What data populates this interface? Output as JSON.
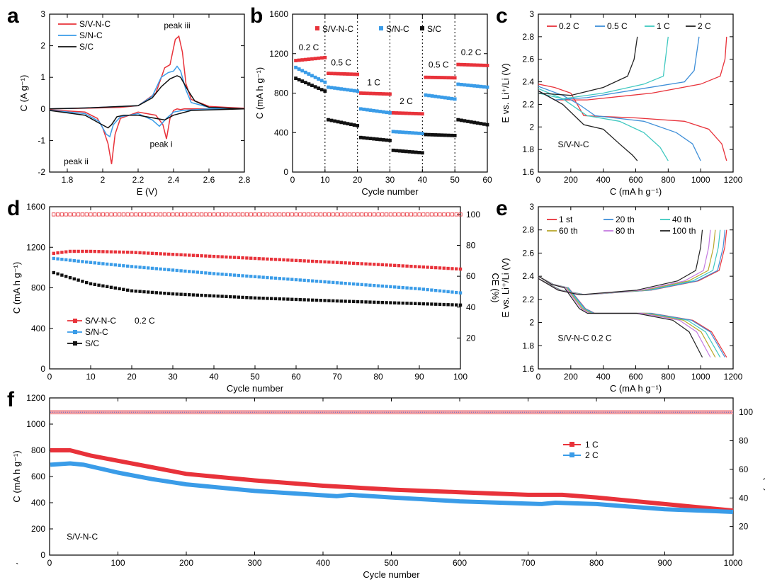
{
  "figure_note": "`",
  "colors": {
    "svnc": "#e8323a",
    "snc": "#3a9ce8",
    "sc": "#111111",
    "c02": "#e8323a",
    "c05": "#3f8fd8",
    "c1": "#3fc8c0",
    "c2": "#222222"
  },
  "chart_data": [
    {
      "id": "a",
      "type": "line",
      "panel_label": "a",
      "xlabel": "E (V)",
      "ylabel": "C (A g⁻¹)",
      "xlim": [
        1.7,
        2.8
      ],
      "ylim": [
        -2,
        3
      ],
      "xticks": [
        1.8,
        2.0,
        2.2,
        2.4,
        2.6,
        2.8
      ],
      "yticks": [
        -2,
        -1,
        0,
        1,
        2,
        3
      ],
      "legend": [
        "S/V-N-C",
        "S/N-C",
        "S/C"
      ],
      "annotations": [
        "peak iii",
        "peak ii",
        "peak i"
      ],
      "series": [
        {
          "name": "S/V-N-C",
          "color": "#e8323a",
          "x": [
            1.7,
            1.9,
            1.97,
            2.0,
            2.03,
            2.05,
            2.07,
            2.1,
            2.2,
            2.3,
            2.34,
            2.36,
            2.38,
            2.4,
            2.42,
            2.44,
            2.46,
            2.5,
            2.6,
            2.8,
            2.7,
            2.6,
            2.5,
            2.47,
            2.45,
            2.43,
            2.41,
            2.38,
            2.35,
            2.3,
            2.2,
            2.1,
            1.9,
            1.7
          ],
          "y": [
            -0.03,
            -0.1,
            -0.3,
            -0.6,
            -1.1,
            -1.75,
            -0.8,
            -0.3,
            -0.1,
            -0.2,
            -0.5,
            -0.95,
            -0.3,
            -0.05,
            0,
            -0.02,
            0,
            0,
            0,
            0.02,
            0.05,
            0.08,
            0.3,
            0.8,
            1.8,
            2.3,
            2.2,
            1.4,
            1.3,
            0.5,
            0.1,
            0.05,
            0.02,
            0
          ]
        },
        {
          "name": "S/N-C",
          "color": "#3a9ce8",
          "x": [
            1.7,
            1.9,
            1.98,
            2.02,
            2.04,
            2.06,
            2.1,
            2.2,
            2.28,
            2.32,
            2.36,
            2.4,
            2.45,
            2.6,
            2.8,
            2.6,
            2.5,
            2.47,
            2.44,
            2.42,
            2.4,
            2.37,
            2.33,
            2.28,
            2.2,
            1.9,
            1.7
          ],
          "y": [
            -0.04,
            -0.15,
            -0.4,
            -0.8,
            -0.88,
            -0.5,
            -0.25,
            -0.15,
            -0.35,
            -0.55,
            -0.3,
            -0.1,
            -0.05,
            0,
            0,
            0.05,
            0.2,
            0.6,
            1.2,
            1.35,
            1.2,
            1.15,
            1.0,
            0.4,
            0.1,
            0.03,
            0
          ]
        },
        {
          "name": "S/C",
          "color": "#111111",
          "x": [
            1.7,
            1.9,
            1.98,
            2.03,
            2.05,
            2.08,
            2.12,
            2.2,
            2.3,
            2.35,
            2.4,
            2.5,
            2.8,
            2.6,
            2.52,
            2.48,
            2.44,
            2.42,
            2.38,
            2.33,
            2.28,
            2.2,
            1.9,
            1.7
          ],
          "y": [
            -0.05,
            -0.2,
            -0.45,
            -0.6,
            -0.5,
            -0.25,
            -0.2,
            -0.2,
            -0.3,
            -0.35,
            -0.2,
            -0.05,
            0,
            0.05,
            0.25,
            0.6,
            1.0,
            1.05,
            0.95,
            0.7,
            0.35,
            0.1,
            0.03,
            0
          ]
        }
      ]
    },
    {
      "id": "b",
      "type": "scatter",
      "panel_label": "b",
      "xlabel": "Cycle number",
      "ylabel": "C (mA h g⁻¹)",
      "xlim": [
        0,
        60
      ],
      "ylim": [
        0,
        1600
      ],
      "xticks": [
        0,
        10,
        20,
        30,
        40,
        50,
        60
      ],
      "yticks": [
        0,
        400,
        800,
        1200,
        1600
      ],
      "legend": [
        "S/V-N-C",
        "S/N-C",
        "S/C"
      ],
      "rate_labels": [
        "0.2 C",
        "0.5 C",
        "1 C",
        "2 C",
        "0.5 C",
        "0.2 C"
      ],
      "separators": [
        10,
        20,
        30,
        40,
        50
      ],
      "series": [
        {
          "name": "S/V-N-C",
          "color": "#e8323a",
          "segments": [
            [
              1,
              10,
              1130,
              1160
            ],
            [
              11,
              20,
              1000,
              990
            ],
            [
              21,
              30,
              800,
              790
            ],
            [
              31,
              40,
              600,
              590
            ],
            [
              41,
              50,
              960,
              955
            ],
            [
              51,
              60,
              1090,
              1080
            ]
          ]
        },
        {
          "name": "S/N-C",
          "color": "#3a9ce8",
          "segments": [
            [
              1,
              10,
              1060,
              910
            ],
            [
              11,
              20,
              860,
              820
            ],
            [
              21,
              30,
              640,
              600
            ],
            [
              31,
              40,
              410,
              390
            ],
            [
              41,
              50,
              780,
              740
            ],
            [
              51,
              60,
              890,
              860
            ]
          ]
        },
        {
          "name": "S/C",
          "color": "#111111",
          "segments": [
            [
              1,
              10,
              950,
              820
            ],
            [
              11,
              20,
              530,
              470
            ],
            [
              21,
              30,
              350,
              320
            ],
            [
              31,
              40,
              220,
              195
            ],
            [
              41,
              50,
              380,
              370
            ],
            [
              51,
              60,
              530,
              480
            ]
          ]
        }
      ]
    },
    {
      "id": "c",
      "type": "line",
      "panel_label": "c",
      "xlabel": "C (mA h g⁻¹)",
      "ylabel": "E vs. Li⁺/Li (V)",
      "xlim": [
        0,
        1200
      ],
      "ylim": [
        1.6,
        3.0
      ],
      "xticks": [
        0,
        200,
        400,
        600,
        800,
        1000,
        1200
      ],
      "yticks": [
        1.6,
        1.8,
        2.0,
        2.2,
        2.4,
        2.6,
        2.8,
        3.0
      ],
      "legend": [
        "0.2 C",
        "0.5 C",
        "1 C",
        "2 C"
      ],
      "annotation": "S/V-N-C",
      "series": [
        {
          "name": "0.2 C",
          "color": "#e8323a",
          "discharge": [
            [
              0,
              2.38
            ],
            [
              100,
              2.35
            ],
            [
              200,
              2.3
            ],
            [
              280,
              2.1
            ],
            [
              600,
              2.08
            ],
            [
              900,
              2.05
            ],
            [
              1050,
              1.98
            ],
            [
              1130,
              1.85
            ],
            [
              1160,
              1.7
            ]
          ],
          "charge": [
            [
              0,
              2.32
            ],
            [
              100,
              2.24
            ],
            [
              300,
              2.24
            ],
            [
              700,
              2.3
            ],
            [
              1000,
              2.38
            ],
            [
              1120,
              2.45
            ],
            [
              1150,
              2.6
            ],
            [
              1160,
              2.8
            ]
          ]
        },
        {
          "name": "0.5 C",
          "color": "#3f8fd8",
          "discharge": [
            [
              0,
              2.36
            ],
            [
              150,
              2.28
            ],
            [
              250,
              2.2
            ],
            [
              350,
              2.1
            ],
            [
              650,
              2.05
            ],
            [
              850,
              1.95
            ],
            [
              950,
              1.85
            ],
            [
              1000,
              1.7
            ]
          ],
          "charge": [
            [
              0,
              2.32
            ],
            [
              100,
              2.24
            ],
            [
              300,
              2.26
            ],
            [
              600,
              2.33
            ],
            [
              900,
              2.4
            ],
            [
              960,
              2.5
            ],
            [
              990,
              2.8
            ]
          ]
        },
        {
          "name": "1 C",
          "color": "#3fc8c0",
          "discharge": [
            [
              0,
              2.34
            ],
            [
              150,
              2.25
            ],
            [
              300,
              2.1
            ],
            [
              500,
              2.05
            ],
            [
              650,
              1.95
            ],
            [
              750,
              1.82
            ],
            [
              800,
              1.7
            ]
          ],
          "charge": [
            [
              0,
              2.3
            ],
            [
              150,
              2.25
            ],
            [
              400,
              2.3
            ],
            [
              650,
              2.38
            ],
            [
              770,
              2.45
            ],
            [
              800,
              2.8
            ]
          ]
        },
        {
          "name": "2 C",
          "color": "#222222",
          "discharge": [
            [
              0,
              2.32
            ],
            [
              150,
              2.2
            ],
            [
              280,
              2.02
            ],
            [
              400,
              1.98
            ],
            [
              500,
              1.85
            ],
            [
              580,
              1.75
            ],
            [
              610,
              1.7
            ]
          ],
          "charge": [
            [
              0,
              2.3
            ],
            [
              200,
              2.28
            ],
            [
              400,
              2.35
            ],
            [
              550,
              2.45
            ],
            [
              590,
              2.6
            ],
            [
              610,
              2.8
            ]
          ]
        }
      ]
    },
    {
      "id": "d",
      "type": "scatter",
      "panel_label": "d",
      "xlabel": "Cycle number",
      "ylabel": "C (mA h g⁻¹)",
      "y2label": "CE (%)",
      "xlim": [
        0,
        100
      ],
      "ylim": [
        0,
        1600
      ],
      "y2lim": [
        0,
        105
      ],
      "xticks": [
        0,
        10,
        20,
        30,
        40,
        50,
        60,
        70,
        80,
        90,
        100
      ],
      "yticks": [
        0,
        400,
        800,
        1200,
        1600
      ],
      "y2ticks": [
        20,
        40,
        60,
        80,
        100
      ],
      "legend": [
        "S/V-N-C",
        "S/N-C",
        "S/C"
      ],
      "legend_note": "0.2 C",
      "series": [
        {
          "name": "S/V-N-C",
          "color": "#e8323a",
          "x": [
            1,
            5,
            10,
            20,
            40,
            60,
            80,
            100
          ],
          "y": [
            1140,
            1160,
            1160,
            1150,
            1110,
            1070,
            1030,
            985
          ]
        },
        {
          "name": "S/N-C",
          "color": "#3a9ce8",
          "x": [
            1,
            10,
            20,
            40,
            60,
            80,
            90,
            100
          ],
          "y": [
            1090,
            1050,
            1010,
            940,
            880,
            820,
            790,
            750
          ]
        },
        {
          "name": "S/C",
          "color": "#111111",
          "x": [
            1,
            5,
            10,
            20,
            30,
            50,
            70,
            100
          ],
          "y": [
            950,
            900,
            840,
            770,
            740,
            700,
            670,
            630
          ]
        },
        {
          "name": "CE",
          "color": "#e8323a",
          "x": [
            1,
            100
          ],
          "y": [
            100,
            100
          ]
        }
      ]
    },
    {
      "id": "e",
      "type": "line",
      "panel_label": "e",
      "xlabel": "C (mA h g⁻¹)",
      "ylabel": "E vs. Li⁺/Li (V)",
      "xlim": [
        0,
        1200
      ],
      "ylim": [
        1.6,
        3.0
      ],
      "xticks": [
        0,
        200,
        400,
        600,
        800,
        1000,
        1200
      ],
      "yticks": [
        1.6,
        1.8,
        2.0,
        2.2,
        2.4,
        2.6,
        2.8,
        3.0
      ],
      "legend": [
        "1 st",
        "20 th",
        "40 th",
        "60 th",
        "80 th",
        "100 th"
      ],
      "annotation": "S/V-N-C    0.2 C",
      "series_colors": [
        "#e8323a",
        "#3f8fd8",
        "#3fc8c0",
        "#b9a82c",
        "#c47be0",
        "#222222"
      ],
      "capacities": [
        1160,
        1150,
        1120,
        1090,
        1060,
        1010
      ]
    },
    {
      "id": "f",
      "type": "scatter",
      "panel_label": "f",
      "xlabel": "Cycle number",
      "ylabel": "C (mA h g⁻¹)",
      "y2label": "CE (%)",
      "xlim": [
        0,
        1000
      ],
      "ylim": [
        0,
        1200
      ],
      "y2lim": [
        0,
        110
      ],
      "xticks": [
        0,
        100,
        200,
        300,
        400,
        500,
        600,
        700,
        800,
        900,
        1000
      ],
      "yticks": [
        0,
        200,
        400,
        600,
        800,
        1000,
        1200
      ],
      "y2ticks": [
        20,
        40,
        60,
        80,
        100
      ],
      "legend": [
        "1 C",
        "2 C"
      ],
      "annotation": "S/V-N-C",
      "series": [
        {
          "name": "1 C",
          "color": "#e8323a",
          "x": [
            1,
            30,
            60,
            100,
            150,
            200,
            300,
            400,
            500,
            600,
            700,
            750,
            800,
            900,
            1000
          ],
          "y": [
            800,
            800,
            760,
            720,
            670,
            620,
            570,
            530,
            500,
            480,
            460,
            460,
            440,
            390,
            340
          ]
        },
        {
          "name": "2 C",
          "color": "#3a9ce8",
          "x": [
            1,
            30,
            50,
            100,
            150,
            200,
            300,
            420,
            440,
            500,
            600,
            720,
            740,
            800,
            900,
            1000
          ],
          "y": [
            690,
            700,
            690,
            630,
            580,
            540,
            490,
            450,
            460,
            440,
            410,
            390,
            400,
            390,
            350,
            330
          ]
        },
        {
          "name": "CE",
          "color": "#e8323a",
          "x": [
            1,
            1000
          ],
          "y": [
            100,
            100
          ]
        }
      ]
    }
  ]
}
